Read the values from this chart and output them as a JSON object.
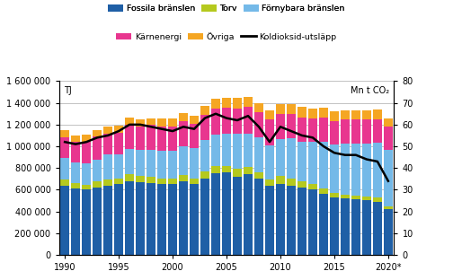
{
  "years": [
    1990,
    1991,
    1992,
    1993,
    1994,
    1995,
    1996,
    1997,
    1998,
    1999,
    2000,
    2001,
    2002,
    2003,
    2004,
    2005,
    2006,
    2007,
    2008,
    2009,
    2010,
    2011,
    2012,
    2013,
    2014,
    2015,
    2016,
    2017,
    2018,
    2019,
    2020
  ],
  "fossila": [
    640000,
    610000,
    600000,
    620000,
    640000,
    650000,
    680000,
    670000,
    660000,
    650000,
    650000,
    680000,
    650000,
    700000,
    750000,
    760000,
    720000,
    740000,
    700000,
    640000,
    650000,
    640000,
    620000,
    600000,
    560000,
    530000,
    520000,
    510000,
    500000,
    490000,
    420000
  ],
  "torv": [
    50000,
    50000,
    45000,
    55000,
    55000,
    50000,
    65000,
    55000,
    55000,
    55000,
    50000,
    55000,
    50000,
    65000,
    65000,
    60000,
    75000,
    70000,
    60000,
    55000,
    75000,
    65000,
    55000,
    50000,
    50000,
    40000,
    30000,
    35000,
    35000,
    35000,
    30000
  ],
  "fornybara": [
    200000,
    195000,
    200000,
    200000,
    230000,
    225000,
    230000,
    240000,
    255000,
    255000,
    255000,
    265000,
    280000,
    290000,
    295000,
    295000,
    320000,
    310000,
    320000,
    315000,
    340000,
    370000,
    370000,
    390000,
    430000,
    445000,
    475000,
    480000,
    490000,
    510000,
    520000
  ],
  "karnenergi": [
    195000,
    185000,
    200000,
    215000,
    195000,
    200000,
    220000,
    215000,
    225000,
    225000,
    230000,
    230000,
    230000,
    235000,
    235000,
    240000,
    235000,
    240000,
    235000,
    235000,
    230000,
    220000,
    220000,
    220000,
    225000,
    220000,
    220000,
    225000,
    220000,
    215000,
    210000
  ],
  "ovriga": [
    60000,
    60000,
    60000,
    60000,
    65000,
    65000,
    70000,
    65000,
    65000,
    70000,
    75000,
    75000,
    75000,
    85000,
    95000,
    95000,
    100000,
    95000,
    85000,
    85000,
    90000,
    90000,
    95000,
    90000,
    90000,
    85000,
    85000,
    85000,
    90000,
    90000,
    80000
  ],
  "co2": [
    52,
    51,
    52,
    54,
    55,
    57,
    60,
    60,
    59,
    58,
    57,
    59,
    58,
    63,
    65,
    63,
    62,
    64,
    59,
    52,
    59,
    57,
    55,
    54,
    50,
    47,
    46,
    46,
    44,
    43,
    34
  ],
  "colors": {
    "fossila": "#1f5fa6",
    "torv": "#b5c91e",
    "fornybara": "#74b9e8",
    "karnenergi": "#e8368f",
    "ovriga": "#f5a623"
  },
  "left_ylim": [
    0,
    1600000
  ],
  "right_ylim": [
    0,
    80
  ],
  "left_yticks": [
    0,
    200000,
    400000,
    600000,
    800000,
    1000000,
    1200000,
    1400000,
    1600000
  ],
  "right_yticks": [
    0,
    10,
    20,
    30,
    40,
    50,
    60,
    70,
    80
  ],
  "xtick_positions": [
    0,
    5,
    10,
    15,
    20,
    25,
    30
  ],
  "xtick_labels": [
    "1990",
    "1995",
    "2000",
    "2005",
    "2010",
    "2015",
    "2020*"
  ],
  "label_tj": "TJ",
  "label_co2": "Mn t CO₂",
  "legend_row1": [
    {
      "label": "Fossila bränslen",
      "color": "#1f5fa6",
      "type": "patch"
    },
    {
      "label": "Torv",
      "color": "#b5c91e",
      "type": "patch"
    },
    {
      "label": "Förnybara bränslen",
      "color": "#74b9e8",
      "type": "patch"
    }
  ],
  "legend_row2": [
    {
      "label": "Kärnenergi",
      "color": "#e8368f",
      "type": "patch"
    },
    {
      "label": "Övriga",
      "color": "#f5a623",
      "type": "patch"
    },
    {
      "label": "Koldioksid-utsläpp",
      "color": "black",
      "type": "line"
    }
  ]
}
